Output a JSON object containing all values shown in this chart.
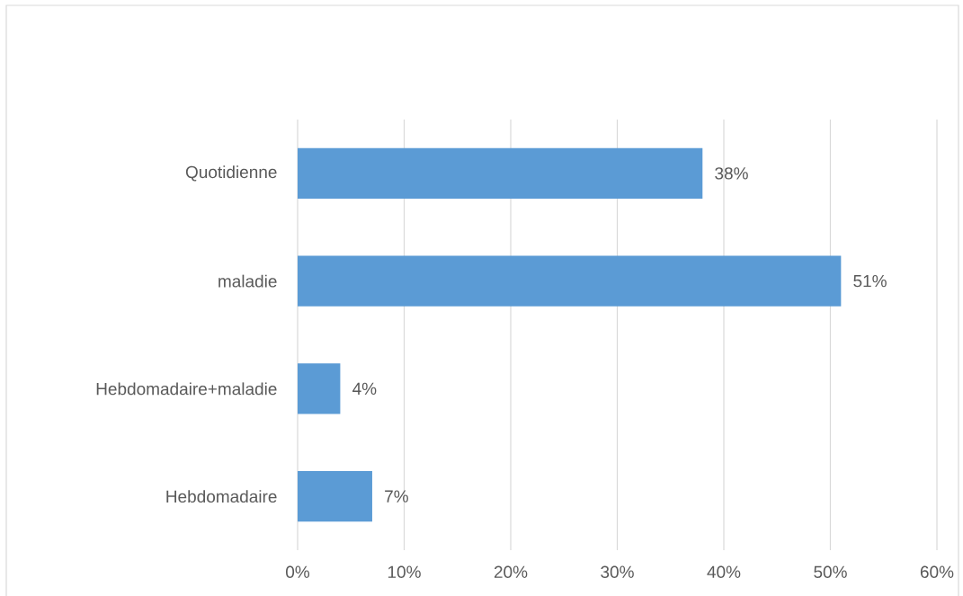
{
  "chart_data": {
    "type": "bar",
    "orientation": "horizontal",
    "categories": [
      "Quotidienne",
      "maladie",
      "Hebdomadaire+maladie",
      "Hebdomadaire"
    ],
    "values": [
      38,
      51,
      4,
      7
    ],
    "value_labels": [
      "38%",
      "51%",
      "4%",
      "7%"
    ],
    "color": "#5b9bd5",
    "xlim": [
      0,
      60
    ],
    "xticks": [
      {
        "value": 0,
        "label": "0%"
      },
      {
        "value": 10,
        "label": "10%"
      },
      {
        "value": 20,
        "label": "20%"
      },
      {
        "value": 30,
        "label": "30%"
      },
      {
        "value": 40,
        "label": "40%"
      },
      {
        "value": 50,
        "label": "50%"
      },
      {
        "value": 60,
        "label": "60%"
      }
    ],
    "grid": "x"
  }
}
